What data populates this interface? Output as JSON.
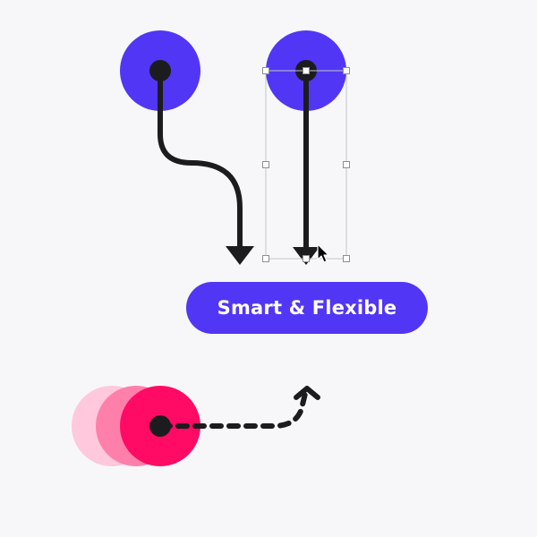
{
  "button": {
    "label": "Smart & Flexible"
  },
  "colors": {
    "background": "#f7f7f9",
    "accent_blue": "#5236f5",
    "accent_pink": "#ff0a64",
    "pink_mid": "#ff7fab",
    "pink_light": "#ffc8dc",
    "stroke": "#1c1c1e",
    "handle_border": "#9a9aa0"
  },
  "icons": [
    "curved-arrow-icon",
    "straight-arrow-icon",
    "dashed-arrow-icon",
    "mouse-cursor-icon"
  ]
}
